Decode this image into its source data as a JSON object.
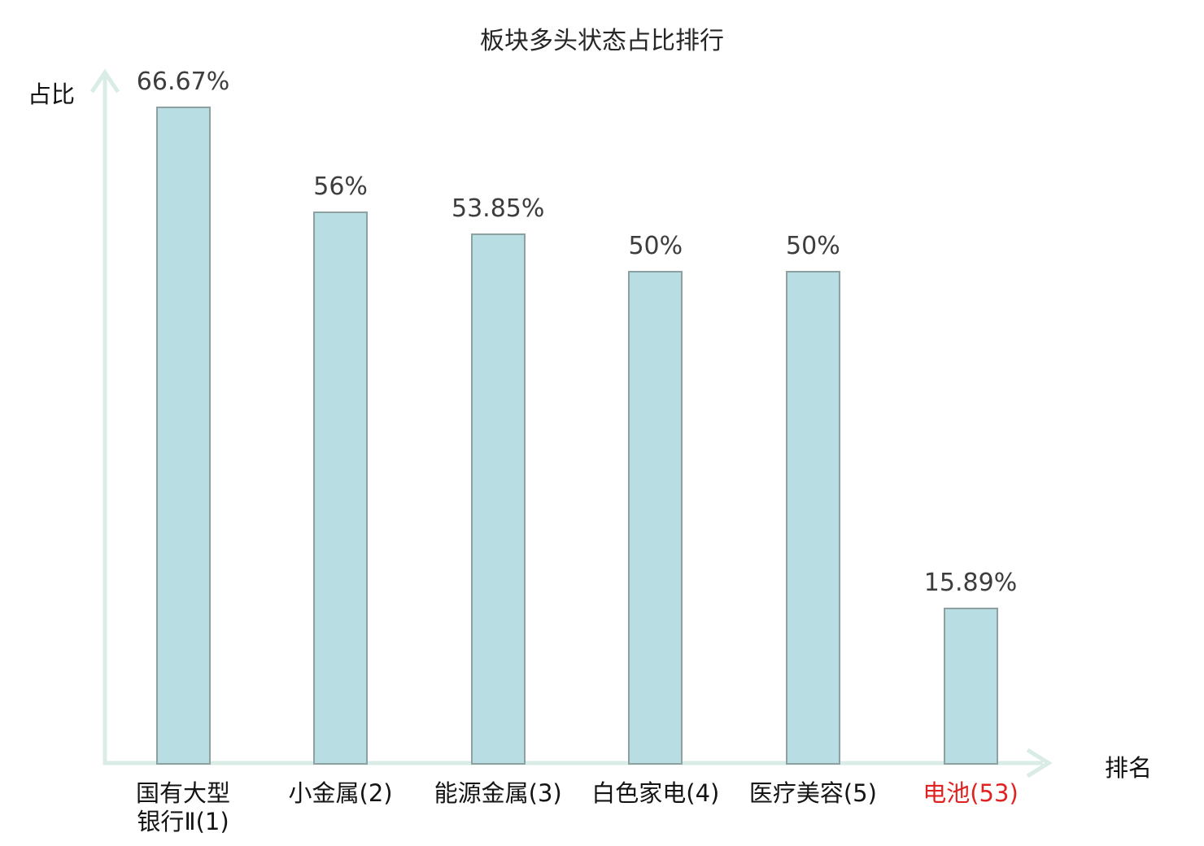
{
  "title": "板块多头状态占比排行",
  "y_axis": {
    "label": "占比"
  },
  "x_axis": {
    "label": "排名"
  },
  "colors": {
    "bar_fill": "#b8dde2",
    "bar_border": "#8da1a3",
    "axis": "#d9ece6",
    "value_text": "#3d3d3d",
    "category_text": "#141414",
    "highlight_text": "#e02222",
    "title_text": "#262626"
  },
  "chart_data": {
    "type": "bar",
    "title": "板块多头状态占比排行",
    "xlabel": "排名",
    "ylabel": "占比",
    "categories": [
      "国有大型银行Ⅱ(1)",
      "小金属(2)",
      "能源金属(3)",
      "白色家电(4)",
      "医疗美容(5)",
      "电池(53)"
    ],
    "categories_display": [
      "国有大型\n银行Ⅱ(1)",
      "小金属(2)",
      "能源金属(3)",
      "白色家电(4)",
      "医疗美容(5)",
      "电池(53)"
    ],
    "values": [
      66.67,
      56,
      53.85,
      50,
      50,
      15.89
    ],
    "value_labels": [
      "66.67%",
      "56%",
      "53.85%",
      "50%",
      "50%",
      "15.89%"
    ],
    "highlighted_index": 5,
    "ylim": [
      0,
      70
    ],
    "grid": false,
    "legend": "none"
  }
}
